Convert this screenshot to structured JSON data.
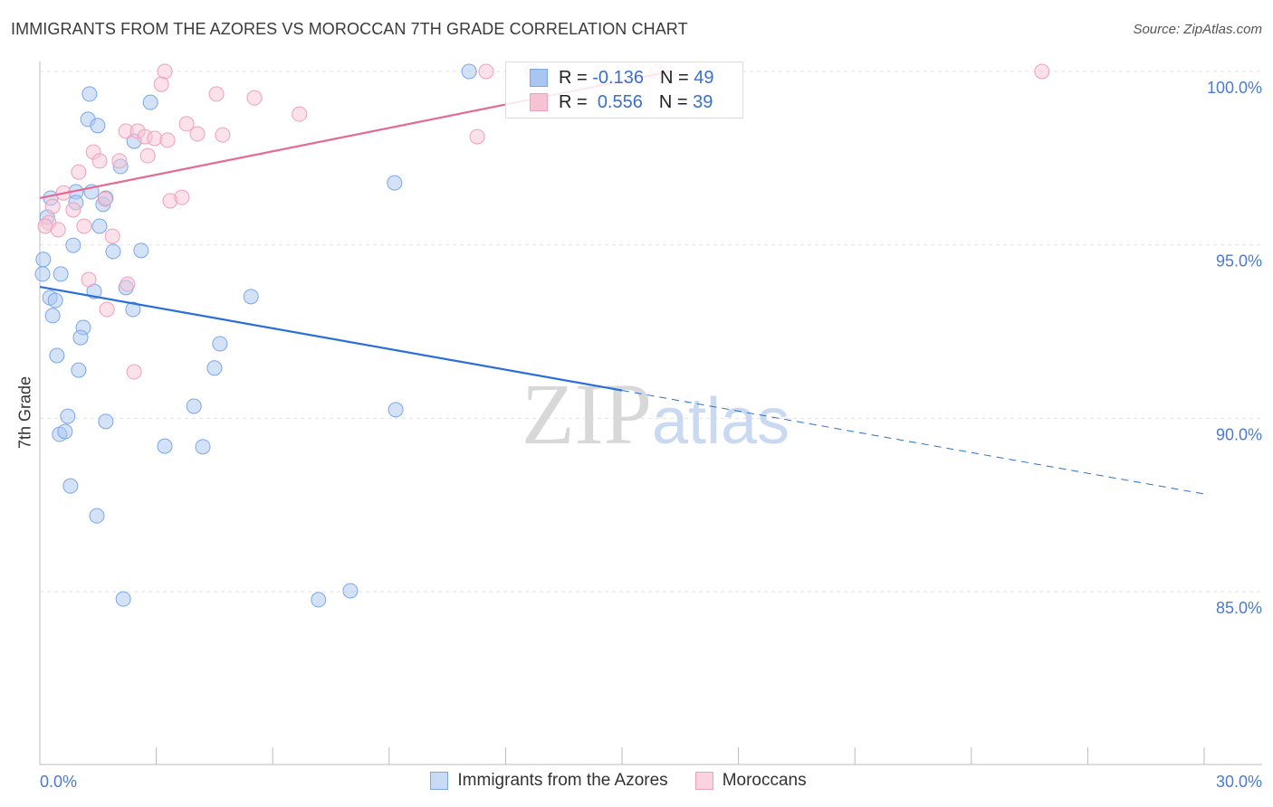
{
  "chart_data": {
    "type": "scatter",
    "title": "IMMIGRANTS FROM THE AZORES VS MOROCCAN 7TH GRADE CORRELATION CHART",
    "source": "Source: ZipAtlas.com",
    "xlabel": "",
    "ylabel": "7th Grade",
    "xlim": [
      0,
      30
    ],
    "ylim": [
      80,
      100.3
    ],
    "x_tick_labels": [
      "0.0%",
      "30.0%"
    ],
    "y_ticks": [
      100,
      95,
      90,
      85
    ],
    "y_tick_labels": [
      "100.0%",
      "95.0%",
      "90.0%",
      "85.0%"
    ],
    "grid": true,
    "watermark": "ZIPatlas",
    "legend_stats": [
      {
        "r_label": "R =",
        "r_value": "-0.136",
        "n_label": "N =",
        "n_value": "49"
      },
      {
        "r_label": "R =",
        "r_value": "0.556",
        "n_label": "N =",
        "n_value": "39"
      }
    ],
    "series": [
      {
        "name": "Immigrants from the Azores",
        "color": "#7aa7e8",
        "fill": "#a9c6f2",
        "line_color": "#2a6fd6",
        "trend": {
          "x0": 0,
          "y0": 93.79,
          "x1": 30,
          "y1": 87.82,
          "solid_until": 15.0
        },
        "points": [
          [
            1.28,
            99.35
          ],
          [
            1.24,
            98.62
          ],
          [
            1.49,
            98.44
          ],
          [
            2.85,
            99.11
          ],
          [
            2.43,
            97.99
          ],
          [
            2.08,
            97.26
          ],
          [
            0.28,
            96.35
          ],
          [
            0.93,
            96.53
          ],
          [
            1.33,
            96.53
          ],
          [
            0.93,
            96.22
          ],
          [
            1.63,
            96.17
          ],
          [
            1.7,
            96.35
          ],
          [
            0.19,
            95.8
          ],
          [
            1.54,
            95.54
          ],
          [
            0.86,
            94.99
          ],
          [
            1.89,
            94.81
          ],
          [
            2.61,
            94.84
          ],
          [
            0.09,
            94.58
          ],
          [
            0.07,
            94.16
          ],
          [
            0.54,
            94.16
          ],
          [
            0.26,
            93.48
          ],
          [
            0.4,
            93.4
          ],
          [
            1.4,
            93.66
          ],
          [
            2.22,
            93.77
          ],
          [
            0.33,
            92.96
          ],
          [
            2.4,
            93.14
          ],
          [
            1.12,
            92.62
          ],
          [
            1.05,
            92.33
          ],
          [
            0.44,
            91.81
          ],
          [
            1.0,
            91.39
          ],
          [
            4.64,
            92.15
          ],
          [
            4.5,
            91.45
          ],
          [
            5.44,
            93.51
          ],
          [
            0.72,
            90.06
          ],
          [
            1.7,
            89.91
          ],
          [
            0.51,
            89.54
          ],
          [
            0.65,
            89.62
          ],
          [
            3.97,
            90.35
          ],
          [
            3.22,
            89.2
          ],
          [
            4.2,
            89.18
          ],
          [
            0.79,
            88.05
          ],
          [
            1.47,
            87.19
          ],
          [
            2.15,
            84.79
          ],
          [
            7.18,
            84.77
          ],
          [
            8.0,
            85.03
          ],
          [
            9.14,
            96.79
          ],
          [
            9.17,
            90.25
          ],
          [
            11.06,
            100.0
          ]
        ]
      },
      {
        "name": "Moroccans",
        "color": "#f0a0bb",
        "fill": "#f7c3d4",
        "line_color": "#e46a93",
        "trend": {
          "x0": 0,
          "y0": 96.35,
          "x1": 16.24,
          "y1": 100.0,
          "solid_until": 16.24
        },
        "points": [
          [
            3.22,
            100
          ],
          [
            3.13,
            99.63
          ],
          [
            4.55,
            99.35
          ],
          [
            5.53,
            99.24
          ],
          [
            6.69,
            98.77
          ],
          [
            3.78,
            98.49
          ],
          [
            4.06,
            98.2
          ],
          [
            4.71,
            98.17
          ],
          [
            2.22,
            98.28
          ],
          [
            2.52,
            98.28
          ],
          [
            2.71,
            98.12
          ],
          [
            2.96,
            98.07
          ],
          [
            3.29,
            98.02
          ],
          [
            1.38,
            97.68
          ],
          [
            1.54,
            97.42
          ],
          [
            2.05,
            97.42
          ],
          [
            2.78,
            97.57
          ],
          [
            1.0,
            97.1
          ],
          [
            0.61,
            96.5
          ],
          [
            0.33,
            96.11
          ],
          [
            0.86,
            96.01
          ],
          [
            1.68,
            96.32
          ],
          [
            3.36,
            96.27
          ],
          [
            3.66,
            96.37
          ],
          [
            0.23,
            95.64
          ],
          [
            0.14,
            95.54
          ],
          [
            0.47,
            95.44
          ],
          [
            1.14,
            95.54
          ],
          [
            1.87,
            95.25
          ],
          [
            1.26,
            94.0
          ],
          [
            2.26,
            93.87
          ],
          [
            1.73,
            93.14
          ],
          [
            2.43,
            91.34
          ],
          [
            11.5,
            100
          ],
          [
            12.69,
            100
          ],
          [
            11.27,
            98.12
          ],
          [
            15.91,
            100
          ],
          [
            25.82,
            100
          ]
        ]
      }
    ]
  }
}
